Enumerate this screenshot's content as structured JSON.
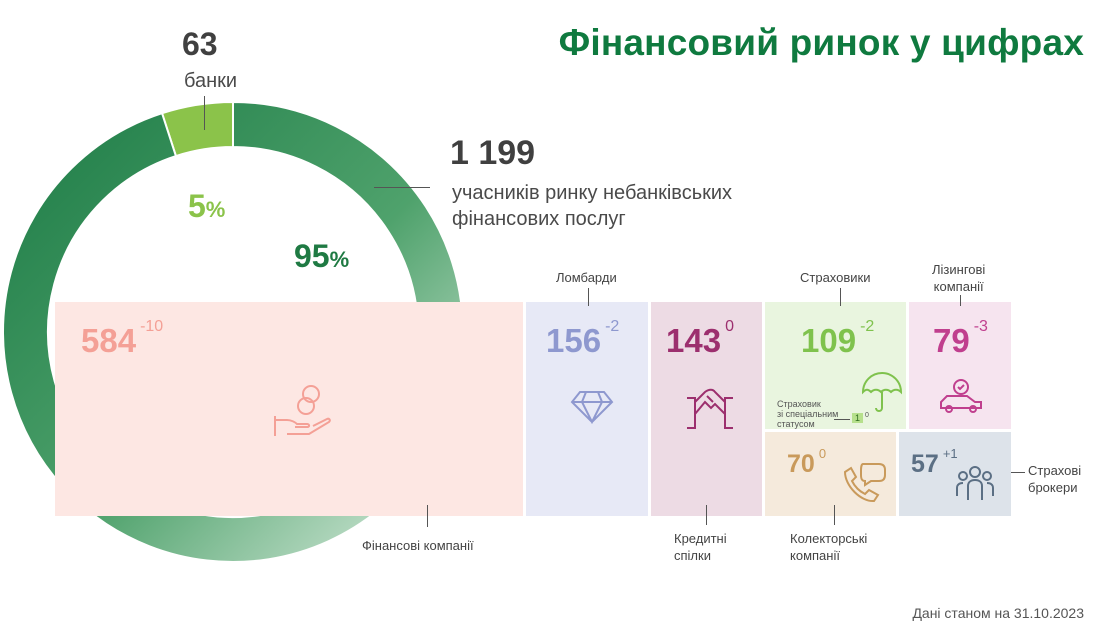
{
  "title": "Фінансовий ринок у цифрах",
  "banks": {
    "value": "63",
    "label": "банки",
    "percent_num": "5",
    "percent_sign": "%"
  },
  "nbfi": {
    "value": "1 199",
    "label_line1": "учасників ринку небанківських",
    "label_line2": "фінансових послуг",
    "percent_num": "95",
    "percent_sign": "%"
  },
  "colors": {
    "title": "#0f7a3f",
    "banks_segment": "#8bc34a",
    "nbfi_segment": "#1f7a43"
  },
  "tiles": {
    "finance": {
      "value": "584",
      "change": "-10",
      "label": "Фінансові компанії",
      "icon": "coins-in-hand-icon",
      "color": "#f4a096",
      "bg": "#fde7e3"
    },
    "pawnshops": {
      "value": "156",
      "change": "-2",
      "label": "Ломбарди",
      "icon": "diamond-icon",
      "color": "#8e98cf",
      "bg": "#e7e9f6"
    },
    "credit_unions": {
      "value": "143",
      "change": "0",
      "label_line1": "Кредитні",
      "label_line2": "спілки",
      "icon": "handshake-icon",
      "color": "#9c2f6e",
      "bg": "#eddbe4"
    },
    "insurers": {
      "value": "109",
      "change": "-2",
      "label": "Страховики",
      "icon": "umbrella-icon",
      "color": "#7fc24d",
      "bg": "#e9f5df",
      "special_line1": "Страховик",
      "special_line2": "зі спеціальним",
      "special_line3": "статусом",
      "special_value": "1",
      "special_change": "0"
    },
    "leasing": {
      "value": "79",
      "change": "-3",
      "label_line1": "Лізингові",
      "label_line2": "компанії",
      "icon": "car-icon",
      "color": "#c03f8e",
      "bg": "#f6e4ef"
    },
    "collectors": {
      "value": "70",
      "change": "0",
      "label_line1": "Колекторські",
      "label_line2": "компанії",
      "icon": "phone-chat-icon",
      "color": "#c99a5b",
      "bg": "#f5eadc"
    },
    "brokers": {
      "value": "57",
      "change": "+1",
      "label_line1": "Страхові",
      "label_line2": "брокери",
      "icon": "people-icon",
      "color": "#5b6f84",
      "bg": "#dde3ea"
    }
  },
  "chart_data": {
    "type": "pie",
    "categories": [
      "банки",
      "учасників ринку небанківських фінансових послуг"
    ],
    "values": [
      63,
      1199
    ],
    "percent": [
      5,
      95
    ],
    "breakdown": {
      "type": "treemap",
      "categories": [
        "Фінансові компанії",
        "Ломбарди",
        "Кредитні спілки",
        "Страховики",
        "Лізингові компанії",
        "Колекторські компанії",
        "Страхові брокери"
      ],
      "values": [
        584,
        156,
        143,
        109,
        79,
        70,
        57
      ],
      "changes": [
        -10,
        -2,
        0,
        -2,
        -3,
        0,
        1
      ]
    }
  },
  "footnote": "Дані станом на 31.10.2023"
}
